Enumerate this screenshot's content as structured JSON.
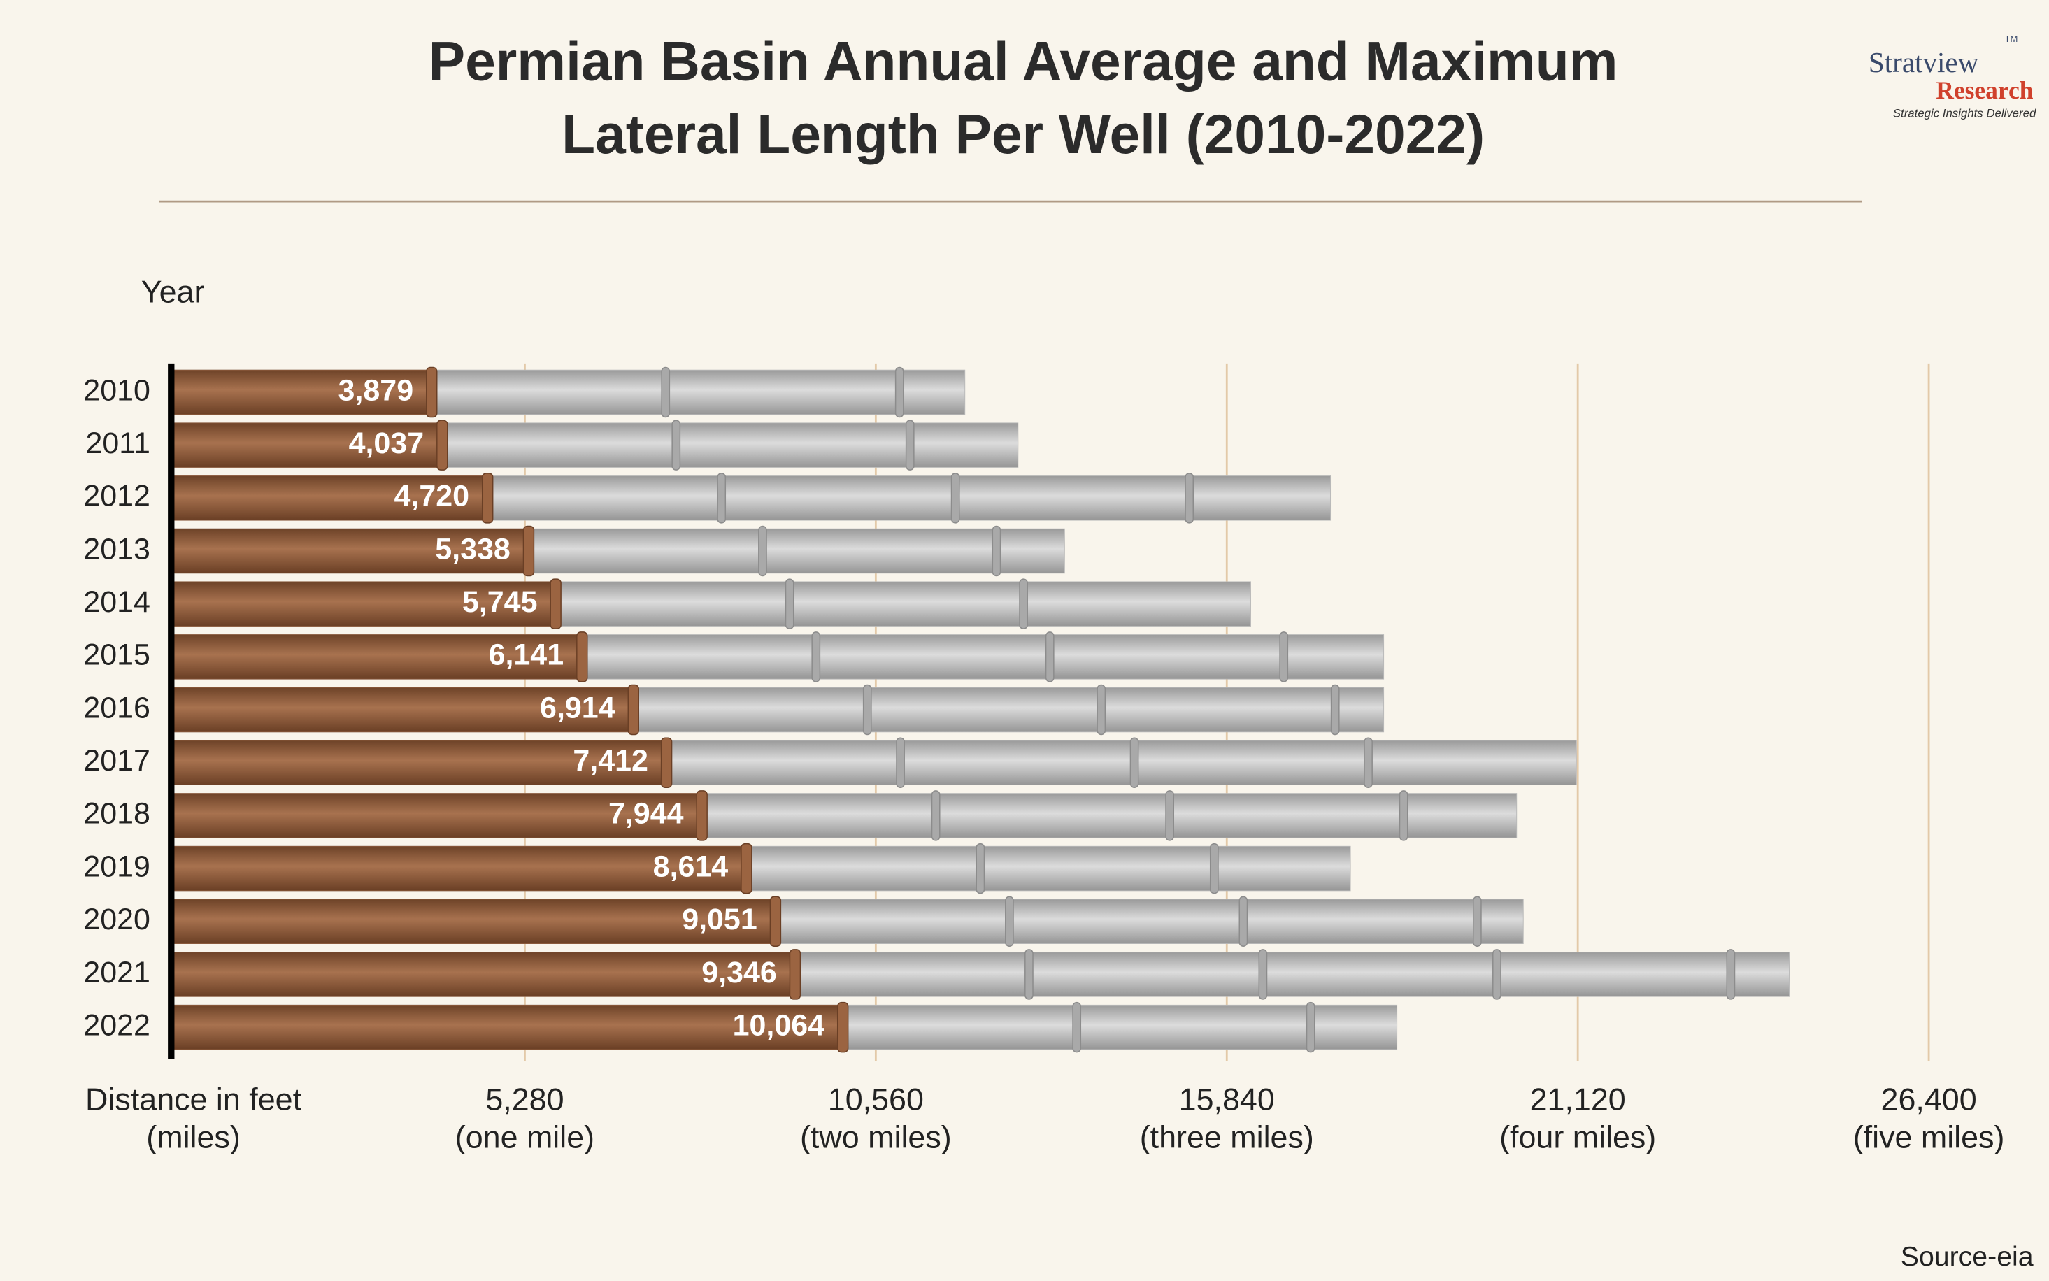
{
  "chart_data": {
    "type": "bar",
    "orientation": "horizontal",
    "title": [
      "Permian Basin Annual Average and Maximum",
      "Lateral Length Per Well (2010-2022)"
    ],
    "y_label": "Year",
    "x_label": [
      "Distance in feet",
      "(miles)"
    ],
    "categories": [
      "2010",
      "2011",
      "2012",
      "2013",
      "2014",
      "2015",
      "2016",
      "2017",
      "2018",
      "2019",
      "2020",
      "2021",
      "2022"
    ],
    "series": [
      {
        "color": "#8b5a3c",
        "values": [
          3879,
          4037,
          4720,
          5338,
          5745,
          6141,
          6914,
          7412,
          7944,
          8614,
          9051,
          9346,
          10064
        ],
        "value_labels": [
          "3,879",
          "4,037",
          "4,720",
          "5,338",
          "5,745",
          "6,141",
          "6,914",
          "7,412",
          "7,944",
          "8,614",
          "9,051",
          "9,346",
          "10,064"
        ]
      },
      {
        "color": "#b8b8b8",
        "values": [
          11900,
          12700,
          17400,
          13400,
          16200,
          18200,
          18200,
          21100,
          20200,
          17700,
          20300,
          24300,
          18400
        ]
      }
    ],
    "xlim": [
      0,
      26400
    ],
    "xticks": [
      {
        "value": 5280,
        "label": "5,280",
        "sublabel": "(one mile)"
      },
      {
        "value": 10560,
        "label": "10,560",
        "sublabel": "(two miles)"
      },
      {
        "value": 15840,
        "label": "15,840",
        "sublabel": "(three miles)"
      },
      {
        "value": 21120,
        "label": "21,120",
        "sublabel": "(four miles)"
      },
      {
        "value": 26400,
        "label": "26,400",
        "sublabel": "(five miles)"
      }
    ],
    "grid": true,
    "grid_color": "#e3c9a8"
  },
  "logo": {
    "name": "Stratview",
    "tm": "TM",
    "sub": "Research",
    "tagline": "Strategic Insights Delivered"
  },
  "source": "Source-eia"
}
